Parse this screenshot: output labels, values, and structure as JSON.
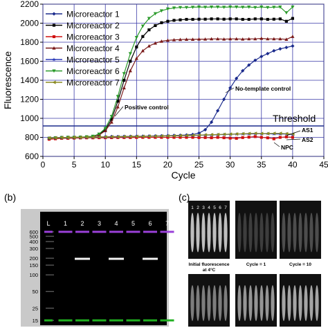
{
  "chart_data": [
    {
      "type": "line",
      "xlabel": "Cycle",
      "ylabel": "Fluorescence",
      "xlim": [
        0,
        45
      ],
      "ylim": [
        600,
        2200
      ],
      "xticks": [
        0,
        5,
        10,
        15,
        20,
        25,
        30,
        35,
        40,
        45
      ],
      "yticks": [
        600,
        800,
        1000,
        1200,
        1400,
        1600,
        1800,
        2000,
        2200
      ],
      "grid": true,
      "legend": "top-left",
      "x": [
        1,
        2,
        3,
        4,
        5,
        6,
        7,
        8,
        9,
        10,
        11,
        12,
        13,
        14,
        15,
        16,
        17,
        18,
        19,
        20,
        21,
        22,
        23,
        24,
        25,
        26,
        27,
        28,
        29,
        30,
        31,
        32,
        33,
        34,
        35,
        36,
        37,
        38,
        39,
        40
      ],
      "series": [
        {
          "name": "Microreactor 1",
          "color": "#1a2a8c",
          "marker": "diamond",
          "values": [
            790,
            795,
            798,
            800,
            800,
            802,
            803,
            805,
            805,
            806,
            808,
            808,
            810,
            810,
            812,
            812,
            814,
            815,
            816,
            818,
            820,
            822,
            825,
            830,
            845,
            880,
            960,
            1080,
            1200,
            1320,
            1420,
            1500,
            1560,
            1610,
            1650,
            1680,
            1710,
            1730,
            1745,
            1760
          ]
        },
        {
          "name": "Microreactor 2",
          "color": "#000000",
          "marker": "square",
          "values": [
            790,
            795,
            798,
            800,
            800,
            802,
            805,
            810,
            830,
            880,
            990,
            1180,
            1400,
            1600,
            1750,
            1860,
            1930,
            1975,
            2005,
            2020,
            2030,
            2035,
            2040,
            2040,
            2042,
            2042,
            2045,
            2045,
            2042,
            2045,
            2045,
            2040,
            2040,
            2045,
            2045,
            2040,
            2042,
            2045,
            2020,
            2050
          ]
        },
        {
          "name": "Microreactor 3",
          "color": "#d01010",
          "marker": "square",
          "values": [
            780,
            785,
            790,
            790,
            792,
            794,
            795,
            795,
            796,
            796,
            797,
            798,
            798,
            798,
            799,
            800,
            800,
            800,
            800,
            800,
            800,
            800,
            800,
            800,
            798,
            798,
            796,
            800,
            796,
            792,
            790,
            798,
            802,
            808,
            800,
            795,
            785,
            800,
            805,
            800
          ]
        },
        {
          "name": "Microreactor 4",
          "color": "#7a1a1a",
          "marker": "triangle-up",
          "values": [
            790,
            795,
            798,
            800,
            800,
            802,
            805,
            808,
            825,
            870,
            960,
            1120,
            1320,
            1500,
            1630,
            1710,
            1760,
            1790,
            1810,
            1820,
            1825,
            1828,
            1830,
            1830,
            1832,
            1832,
            1835,
            1835,
            1832,
            1835,
            1835,
            1832,
            1835,
            1835,
            1840,
            1835,
            1835,
            1835,
            1830,
            1860
          ]
        },
        {
          "name": "Microreactor 5",
          "color": "#2a3ab8",
          "marker": "star",
          "values": [
            792,
            794,
            796,
            796,
            798,
            798,
            800,
            800,
            802,
            802,
            804,
            805,
            806,
            808,
            810,
            810,
            812,
            812,
            814,
            815,
            816,
            818,
            818,
            820,
            822,
            824,
            825,
            828,
            830,
            832,
            834,
            836,
            836,
            838,
            838,
            838,
            836,
            836,
            836,
            830
          ]
        },
        {
          "name": "Microreactor 6",
          "color": "#2a9a2a",
          "marker": "triangle-down",
          "values": [
            790,
            795,
            798,
            800,
            800,
            802,
            806,
            812,
            835,
            895,
            1020,
            1230,
            1470,
            1680,
            1850,
            1970,
            2050,
            2100,
            2130,
            2150,
            2160,
            2165,
            2165,
            2168,
            2170,
            2168,
            2170,
            2170,
            2168,
            2170,
            2170,
            2168,
            2170,
            2165,
            2170,
            2165,
            2168,
            2170,
            2110,
            2170
          ]
        },
        {
          "name": "Microreactor 7",
          "color": "#8a8a22",
          "marker": "triangle-left",
          "values": [
            795,
            796,
            798,
            798,
            800,
            800,
            802,
            802,
            804,
            805,
            806,
            806,
            808,
            808,
            810,
            810,
            812,
            812,
            814,
            815,
            816,
            818,
            820,
            822,
            824,
            826,
            828,
            830,
            832,
            834,
            836,
            838,
            840,
            842,
            840,
            840,
            842,
            842,
            838,
            835
          ]
        }
      ],
      "threshold": {
        "value": 920,
        "label": "Threshold",
        "color": "#1a2a8c"
      },
      "annotations": [
        "Positive control",
        "No-template control",
        "AS1",
        "AS2",
        "NPC"
      ]
    },
    {
      "type": "gel",
      "panel_label": "(b)",
      "lanes": [
        "L",
        "1",
        "2",
        "3",
        "4",
        "5",
        "6",
        "7"
      ],
      "ladder_bp": [
        600,
        500,
        400,
        300,
        200,
        150,
        100,
        50,
        25,
        15
      ],
      "band_bp": 195,
      "bands_in_lanes": [
        "2",
        "4",
        "6"
      ],
      "marker_upper_color": "#9a40d8",
      "marker_lower_color": "#20b020"
    },
    {
      "type": "image-grid",
      "panel_label": "(c)",
      "channel_labels": [
        "1",
        "2",
        "3",
        "4",
        "5",
        "6",
        "7"
      ],
      "captions": [
        "Initial fluorescence at 4°C",
        "Cycle = 1",
        "Cycle = 10"
      ]
    }
  ]
}
